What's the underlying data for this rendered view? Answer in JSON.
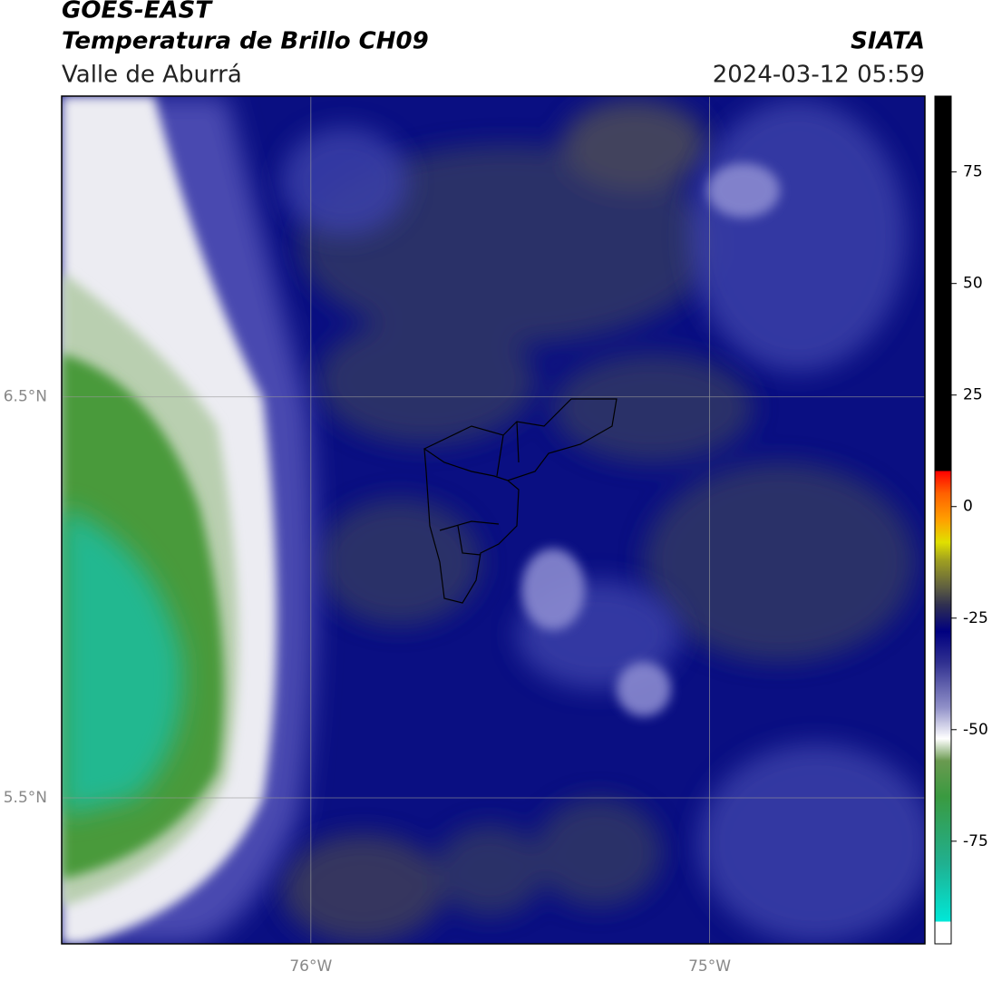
{
  "header": {
    "title": "GOES-EAST",
    "subtitle": "Temperatura de Brillo CH09",
    "region": "Valle de Aburrá",
    "source": "SIATA",
    "datetime": "2024-03-12 05:59"
  },
  "map": {
    "xlim": [
      -76.625,
      -74.46
    ],
    "ylim": [
      5.136,
      7.25
    ],
    "xticks": [
      {
        "value": -76,
        "label": "76°W"
      },
      {
        "value": -75,
        "label": "75°W"
      }
    ],
    "yticks": [
      {
        "value": 6.5,
        "label": "6.5°N"
      },
      {
        "value": 5.5,
        "label": "5.5°N"
      }
    ],
    "grid": true
  },
  "colorbar": {
    "lim": [
      -98,
      92
    ],
    "ticks": [
      75,
      50,
      25,
      0,
      -25,
      -50,
      -75
    ],
    "stops": [
      {
        "value": -98,
        "color": "#ffffff"
      },
      {
        "value": -93,
        "color": "#ffffff"
      },
      {
        "value": -93,
        "color": "#00e8d8"
      },
      {
        "value": -80,
        "color": "#20b090"
      },
      {
        "value": -65,
        "color": "#3a9a40"
      },
      {
        "value": -57,
        "color": "#6a9a50"
      },
      {
        "value": -52,
        "color": "#ffffff"
      },
      {
        "value": -45,
        "color": "#9090c8"
      },
      {
        "value": -35,
        "color": "#303090"
      },
      {
        "value": -28,
        "color": "#000080"
      },
      {
        "value": -22,
        "color": "#303050"
      },
      {
        "value": -18,
        "color": "#606040"
      },
      {
        "value": -12,
        "color": "#a0a020"
      },
      {
        "value": -8,
        "color": "#e0e000"
      },
      {
        "value": -3,
        "color": "#ffa000"
      },
      {
        "value": 3,
        "color": "#ff6000"
      },
      {
        "value": 8,
        "color": "#ff0000"
      },
      {
        "value": 8,
        "color": "#000000"
      },
      {
        "value": 92,
        "color": "#000000"
      }
    ]
  }
}
